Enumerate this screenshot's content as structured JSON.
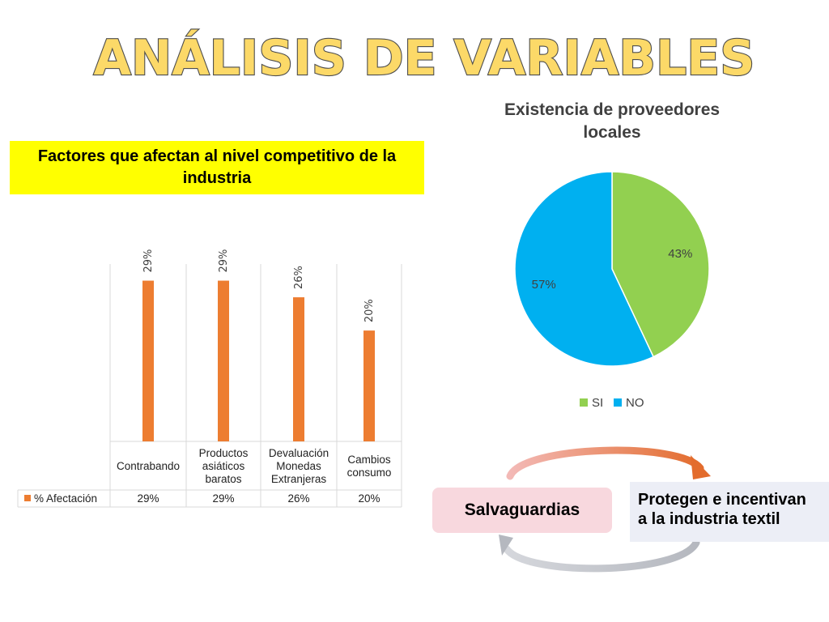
{
  "page": {
    "title": "ANÁLISIS DE VARIABLES",
    "bar_section_title": "Factores que afectan al nivel competitivo de la industria",
    "colors": {
      "title_fill": "#fcd968",
      "title_stroke": "#4d4d4d",
      "highlight": "#ffff00",
      "bar": "#ed7d31",
      "pie_si": "#92d050",
      "pie_no": "#00b0f0"
    }
  },
  "chart_data": [
    {
      "type": "bar",
      "title": "Factores que afectan al nivel competitivo de la industria",
      "categories": [
        "Contrabando",
        "Productos asiáticos baratos",
        "Devaluación Monedas Extranjeras",
        "Cambios consumo"
      ],
      "series": [
        {
          "name": "% Afectación",
          "values": [
            29,
            29,
            26,
            20
          ]
        }
      ],
      "data_labels": [
        "29%",
        "29%",
        "26%",
        "20%"
      ],
      "ylim": [
        0,
        32
      ],
      "legend": "left-of-table"
    },
    {
      "type": "pie",
      "title": "Existencia de proveedores locales",
      "labels": [
        "SI",
        "NO"
      ],
      "values": [
        43,
        57
      ],
      "data_labels": [
        "43%",
        "57%"
      ],
      "legend": "bottom"
    }
  ],
  "cycle": {
    "left_label": "Salvaguardias",
    "right_label_line1": "Protegen e incentivan",
    "right_label_line2": "a la industria textil"
  }
}
